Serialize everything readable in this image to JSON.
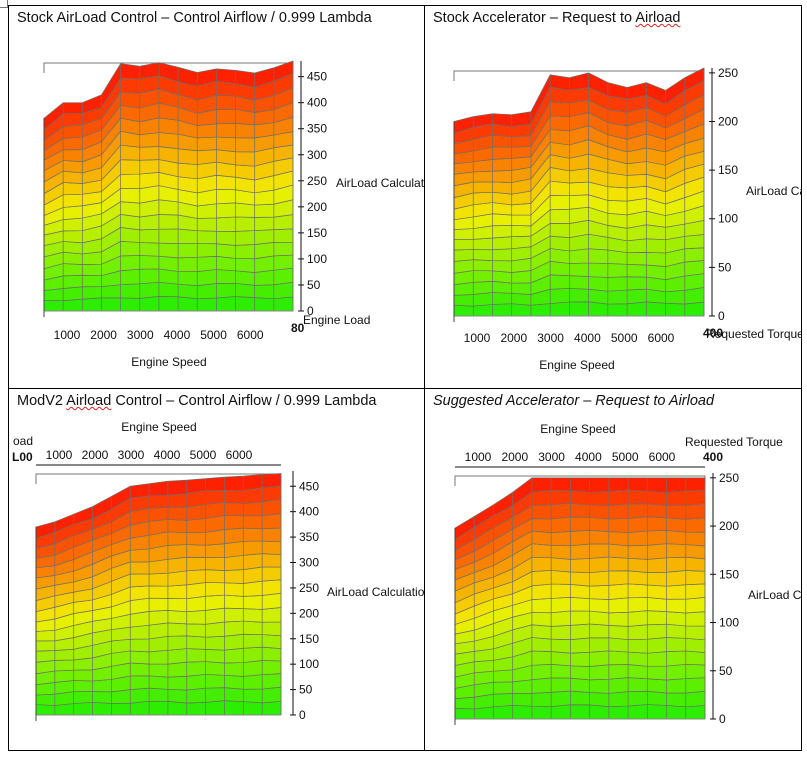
{
  "charts": [
    {
      "title_parts": [
        "Stock AirLoad Control – Control Airflow / 0.999 Lambda"
      ],
      "title_squiggle": "",
      "italic": false,
      "x_axis_label": "Engine Speed",
      "x_ticks": [
        "1000",
        "2000",
        "3000",
        "4000",
        "5000",
        "6000"
      ],
      "y_axis_label": "Engine Load",
      "y_corner_tick": "80",
      "z_axis_label": "AirLoad Calculati",
      "z_ticks": [
        "0",
        "50",
        "100",
        "150",
        "200",
        "250",
        "300",
        "350",
        "400",
        "450"
      ],
      "z_max": 480,
      "top_profile": [
        370,
        400,
        400,
        415,
        475,
        470,
        477,
        468,
        458,
        465,
        462,
        457,
        467,
        480
      ],
      "x_top_axis": false
    },
    {
      "title_parts": [
        "Stock Accelerator – Request to ",
        "Airload"
      ],
      "title_squiggle": "Airload",
      "italic": false,
      "x_axis_label": "Engine Speed",
      "x_ticks": [
        "1000",
        "2000",
        "3000",
        "4000",
        "5000",
        "6000"
      ],
      "y_axis_label": "Requested Torque",
      "y_corner_tick": "400",
      "z_axis_label": "AirLoad Ca",
      "z_ticks": [
        "0",
        "50",
        "100",
        "150",
        "200",
        "250"
      ],
      "z_max": 255,
      "top_profile": [
        200,
        205,
        208,
        207,
        210,
        248,
        245,
        250,
        240,
        235,
        240,
        232,
        245,
        255
      ],
      "x_top_axis": false
    },
    {
      "title_parts": [
        "ModV2 ",
        "Airload",
        " Control – Control Airflow / 0.999 Lambda"
      ],
      "title_squiggle": "Airload",
      "italic": false,
      "x_axis_label": "Engine Speed",
      "x_ticks": [
        "1000",
        "2000",
        "3000",
        "4000",
        "5000",
        "6000"
      ],
      "y_axis_label": "oad",
      "y_corner_tick": "L00",
      "z_axis_label": "AirLoad Calculation",
      "z_ticks": [
        "0",
        "50",
        "100",
        "150",
        "200",
        "250",
        "300",
        "350",
        "400",
        "450"
      ],
      "z_max": 480,
      "top_profile": [
        370,
        380,
        395,
        410,
        430,
        450,
        455,
        460,
        462,
        465,
        468,
        470,
        473,
        475
      ],
      "x_top_axis": true
    },
    {
      "title_parts": [
        "Suggested Accelerator – Request to Airload"
      ],
      "title_squiggle": "",
      "italic": true,
      "x_axis_label": "Engine Speed",
      "x_ticks": [
        "1000",
        "2000",
        "3000",
        "4000",
        "5000",
        "6000"
      ],
      "y_axis_label": "Requested Torque",
      "y_corner_tick": "400",
      "z_axis_label": "AirLoad C",
      "z_ticks": [
        "0",
        "50",
        "100",
        "150",
        "200",
        "250"
      ],
      "z_max": 255,
      "top_profile": [
        198,
        210,
        222,
        235,
        250,
        250,
        250,
        250,
        250,
        250,
        250,
        250,
        250,
        250
      ],
      "x_top_axis": true
    }
  ],
  "colors": {
    "low": "#22ee00",
    "mid": "#f2f000",
    "high": "#ff1500",
    "grid": "#707070"
  }
}
